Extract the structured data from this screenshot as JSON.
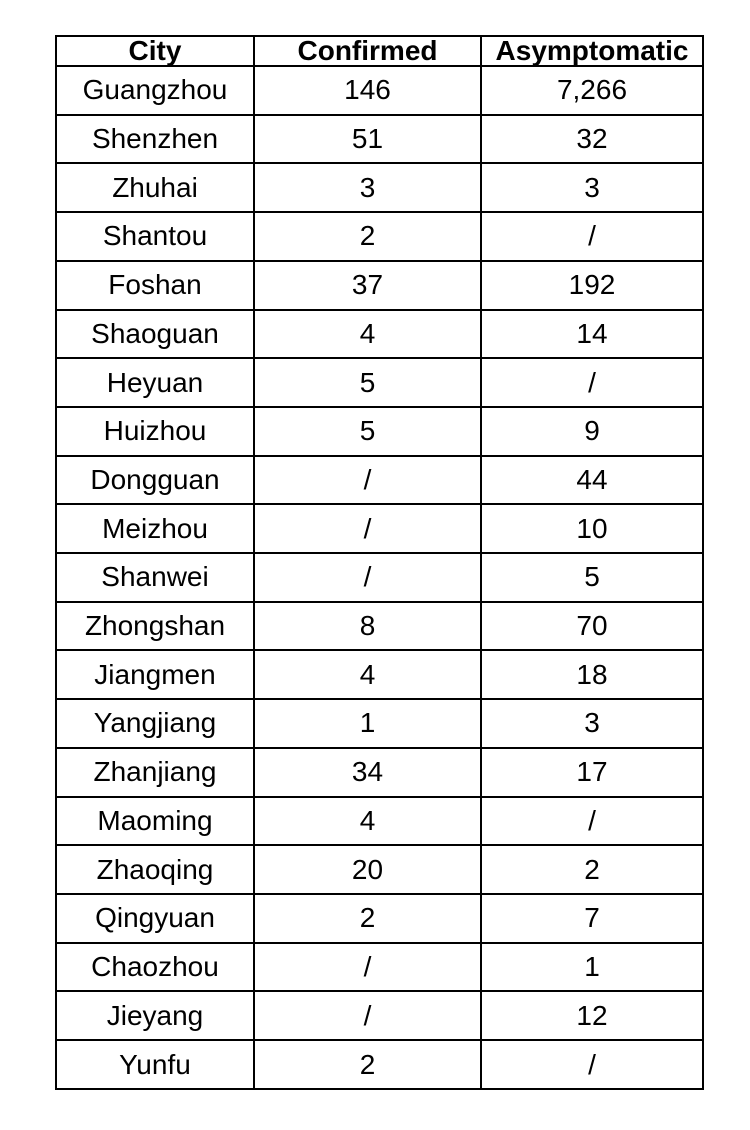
{
  "colors": {
    "background": "#ffffff",
    "border": "#000000",
    "text": "#000000"
  },
  "chart_data": {
    "type": "table",
    "columns": [
      "City",
      "Confirmed",
      "Asymptomatic"
    ],
    "empty_marker": "/",
    "rows": [
      [
        "Guangzhou",
        "146",
        "7,266"
      ],
      [
        "Shenzhen",
        "51",
        "32"
      ],
      [
        "Zhuhai",
        "3",
        "3"
      ],
      [
        "Shantou",
        "2",
        "/"
      ],
      [
        "Foshan",
        "37",
        "192"
      ],
      [
        "Shaoguan",
        "4",
        "14"
      ],
      [
        "Heyuan",
        "5",
        "/"
      ],
      [
        "Huizhou",
        "5",
        "9"
      ],
      [
        "Dongguan",
        "/",
        "44"
      ],
      [
        "Meizhou",
        "/",
        "10"
      ],
      [
        "Shanwei",
        "/",
        "5"
      ],
      [
        "Zhongshan",
        "8",
        "70"
      ],
      [
        "Jiangmen",
        "4",
        "18"
      ],
      [
        "Yangjiang",
        "1",
        "3"
      ],
      [
        "Zhanjiang",
        "34",
        "17"
      ],
      [
        "Maoming",
        "4",
        "/"
      ],
      [
        "Zhaoqing",
        "20",
        "2"
      ],
      [
        "Qingyuan",
        "2",
        "7"
      ],
      [
        "Chaozhou",
        "/",
        "1"
      ],
      [
        "Jieyang",
        "/",
        "12"
      ],
      [
        "Yunfu",
        "2",
        "/"
      ]
    ]
  }
}
